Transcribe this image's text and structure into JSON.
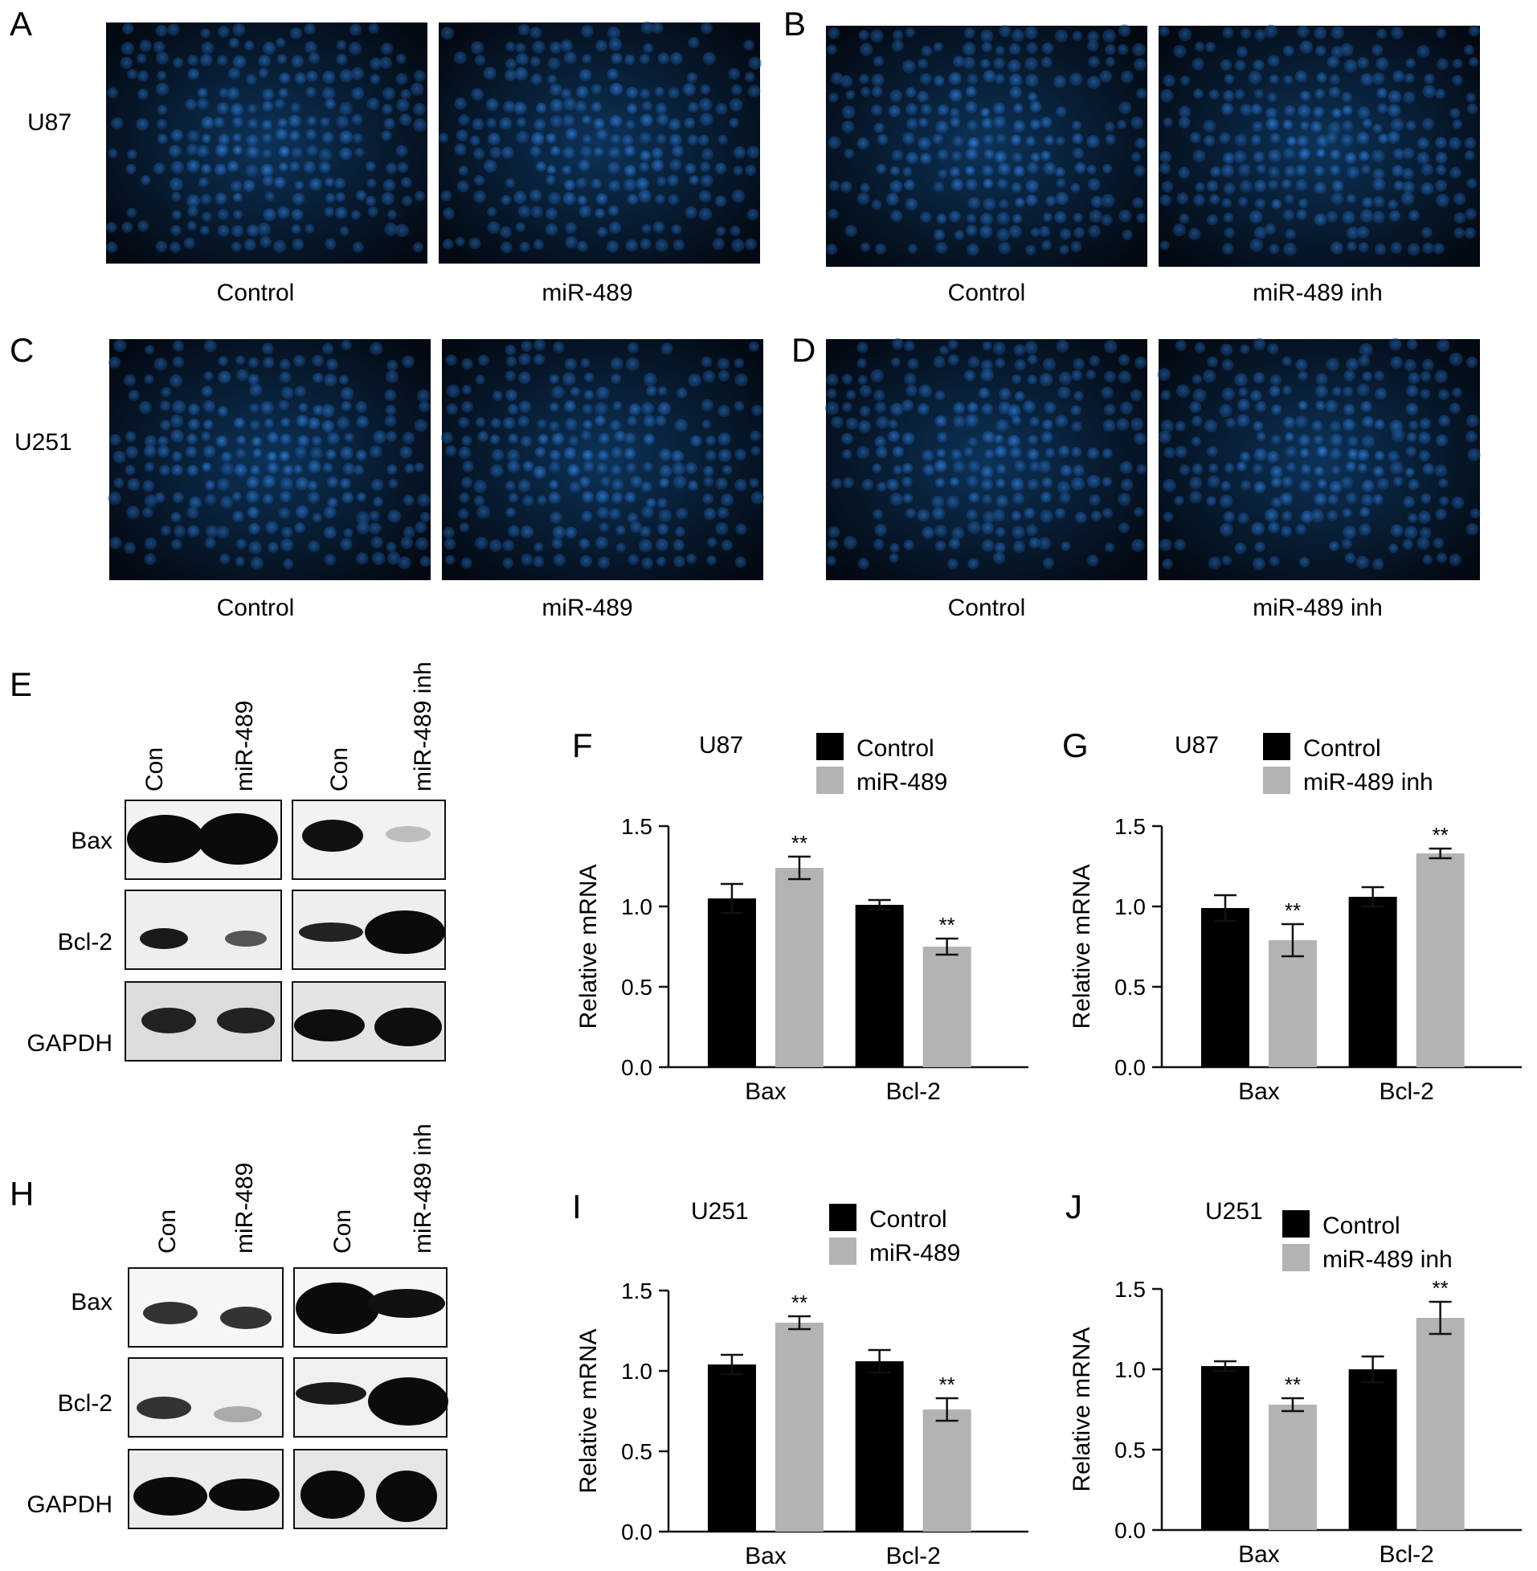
{
  "panel_letters": [
    "A",
    "B",
    "C",
    "D",
    "E",
    "F",
    "G",
    "H",
    "I",
    "J"
  ],
  "micrographs": {
    "rows": [
      {
        "cell_line": "U87",
        "panels": [
          {
            "letter": "A",
            "labels": [
              "Control",
              "miR-489"
            ]
          },
          {
            "letter": "B",
            "labels": [
              "Control",
              "miR-489 inh"
            ]
          }
        ]
      },
      {
        "cell_line": "U251",
        "panels": [
          {
            "letter": "C",
            "labels": [
              "Control",
              "miR-489"
            ]
          },
          {
            "letter": "D",
            "labels": [
              "Control",
              "miR-489 inh"
            ]
          }
        ]
      }
    ]
  },
  "blots": [
    {
      "letter": "E",
      "lanes_left": [
        "Con",
        "miR-489"
      ],
      "lanes_right": [
        "Con",
        "miR-489 inh"
      ],
      "rows": [
        "Bax",
        "Bcl-2",
        "GAPDH"
      ]
    },
    {
      "letter": "H",
      "lanes_left": [
        "Con",
        "miR-489"
      ],
      "lanes_right": [
        "Con",
        "miR-489 inh"
      ],
      "rows": [
        "Bax",
        "Bcl-2",
        "GAPDH"
      ]
    }
  ],
  "chart_data": [
    {
      "panel": "F",
      "type": "bar",
      "title": "U87",
      "ylabel": "Relative mRNA",
      "ylim": [
        0,
        1.5
      ],
      "yticks": [
        "0.0",
        "0.5",
        "1.0",
        "1.5"
      ],
      "categories": [
        "Bax",
        "Bcl-2"
      ],
      "series": [
        {
          "name": "Control",
          "color": "#000000",
          "values": [
            1.05,
            1.01
          ],
          "errors": [
            0.09,
            0.03
          ],
          "sig": [
            "",
            ""
          ]
        },
        {
          "name": "miR-489",
          "color": "#b3b3b3",
          "values": [
            1.24,
            0.75
          ],
          "errors": [
            0.07,
            0.05
          ],
          "sig": [
            "**",
            "**"
          ]
        }
      ]
    },
    {
      "panel": "G",
      "type": "bar",
      "title": "U87",
      "ylabel": "Relative mRNA",
      "ylim": [
        0,
        1.5
      ],
      "yticks": [
        "0.0",
        "0.5",
        "1.0",
        "1.5"
      ],
      "categories": [
        "Bax",
        "Bcl-2"
      ],
      "series": [
        {
          "name": "Control",
          "color": "#000000",
          "values": [
            0.99,
            1.06
          ],
          "errors": [
            0.08,
            0.06
          ],
          "sig": [
            "",
            ""
          ]
        },
        {
          "name": "miR-489 inh",
          "color": "#b3b3b3",
          "values": [
            0.79,
            1.33
          ],
          "errors": [
            0.1,
            0.03
          ],
          "sig": [
            "**",
            "**"
          ]
        }
      ]
    },
    {
      "panel": "I",
      "type": "bar",
      "title": "U251",
      "ylabel": "Relative mRNA",
      "ylim": [
        0,
        1.5
      ],
      "yticks": [
        "0.0",
        "0.5",
        "1.0",
        "1.5"
      ],
      "categories": [
        "Bax",
        "Bcl-2"
      ],
      "series": [
        {
          "name": "Control",
          "color": "#000000",
          "values": [
            1.04,
            1.06
          ],
          "errors": [
            0.06,
            0.07
          ],
          "sig": [
            "",
            ""
          ]
        },
        {
          "name": "miR-489",
          "color": "#b3b3b3",
          "values": [
            1.3,
            0.76
          ],
          "errors": [
            0.04,
            0.07
          ],
          "sig": [
            "**",
            "**"
          ]
        }
      ]
    },
    {
      "panel": "J",
      "type": "bar",
      "title": "U251",
      "ylabel": "Relative mRNA",
      "ylim": [
        0,
        1.5
      ],
      "yticks": [
        "0.0",
        "0.5",
        "1.0",
        "1.5"
      ],
      "categories": [
        "Bax",
        "Bcl-2"
      ],
      "series": [
        {
          "name": "Control",
          "color": "#000000",
          "values": [
            1.02,
            1.0
          ],
          "errors": [
            0.03,
            0.08
          ],
          "sig": [
            "",
            ""
          ]
        },
        {
          "name": "miR-489 inh",
          "color": "#b3b3b3",
          "values": [
            0.78,
            1.32
          ],
          "errors": [
            0.04,
            0.1
          ],
          "sig": [
            "**",
            "**"
          ]
        }
      ]
    }
  ]
}
